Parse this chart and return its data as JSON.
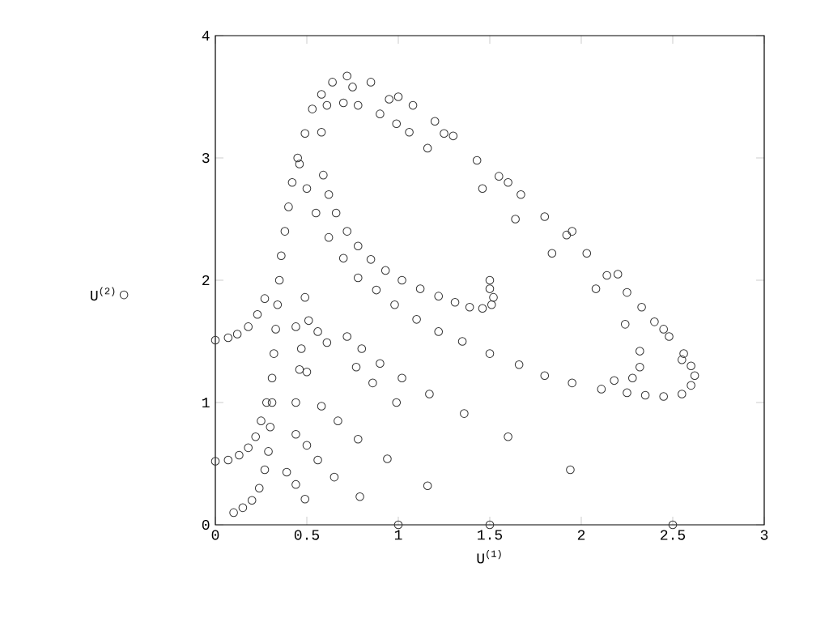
{
  "chart_data": {
    "type": "scatter",
    "xlabel": "U$^{(1)}$",
    "x": [
      0,
      0.07,
      0.12,
      0.18,
      0.23,
      0.27,
      0,
      0.07,
      0.13,
      0.18,
      0.22,
      0.25,
      0.28,
      0.1,
      0.15,
      0.2,
      0.24,
      0.27,
      0.29,
      0.3,
      0.31,
      0.31,
      0.32,
      0.33,
      0.34,
      0.35,
      0.36,
      0.38,
      0.4,
      0.42,
      0.45,
      0.49,
      0.53,
      0.58,
      0.64,
      0.72,
      0.85,
      1.0,
      1.08,
      1.2,
      1.3,
      1.43,
      1.55,
      1.67,
      1.8,
      1.92,
      2.03,
      2.14,
      2.25,
      2.33,
      2.4,
      2.48,
      2.56,
      2.6,
      2.62,
      2.6,
      2.55,
      2.45,
      2.35,
      2.25,
      2.11,
      1.95,
      1.8,
      1.66,
      1.5,
      1.35,
      1.22,
      1.1,
      0.98,
      0.88,
      0.78,
      0.7,
      0.62,
      0.55,
      0.5,
      0.46,
      0.75,
      0.95,
      1.25,
      1.6,
      1.95,
      2.2,
      2.45,
      2.55,
      0.58,
      0.61,
      0.7,
      0.78,
      0.9,
      0.99,
      1.16,
      0.59,
      0.62,
      0.66,
      0.72,
      0.78,
      0.85,
      0.93,
      1.02,
      1.12,
      1.22,
      1.31,
      1.39,
      1.46,
      1.51,
      1.52,
      1.5,
      1.5,
      1.84,
      2.08,
      2.24,
      2.32,
      2.32,
      2.28,
      2.18,
      1.46,
      1.64,
      1.06,
      0.49,
      0.51,
      0.56,
      0.61,
      0.72,
      0.8,
      0.9,
      1.02,
      1.17,
      1.36,
      1.6,
      1.94,
      0.44,
      0.47,
      0.5,
      0.58,
      0.67,
      0.78,
      0.94,
      1.16,
      0.99,
      0.86,
      0.77,
      0.46,
      0.44,
      0.44,
      0.5,
      0.56,
      0.65,
      0.79,
      0.44,
      0.49,
      0.39,
      1.0,
      1.5,
      2.5
    ],
    "series": [
      {
        "name": "U$^{(2)}$",
        "color": "#333333",
        "values": [
          1.51,
          1.53,
          1.56,
          1.62,
          1.72,
          1.85,
          0.52,
          0.53,
          0.57,
          0.63,
          0.72,
          0.85,
          1.0,
          0.1,
          0.14,
          0.2,
          0.3,
          0.45,
          0.6,
          0.8,
          1.0,
          1.2,
          1.4,
          1.6,
          1.8,
          2.0,
          2.2,
          2.4,
          2.6,
          2.8,
          3.0,
          3.2,
          3.4,
          3.52,
          3.62,
          3.67,
          3.62,
          3.5,
          3.43,
          3.3,
          3.18,
          2.98,
          2.85,
          2.7,
          2.52,
          2.37,
          2.22,
          2.04,
          1.9,
          1.78,
          1.66,
          1.54,
          1.4,
          1.3,
          1.22,
          1.14,
          1.07,
          1.05,
          1.06,
          1.08,
          1.11,
          1.16,
          1.22,
          1.31,
          1.4,
          1.5,
          1.58,
          1.68,
          1.8,
          1.92,
          2.02,
          2.18,
          2.35,
          2.55,
          2.75,
          2.95,
          3.58,
          3.48,
          3.2,
          2.8,
          2.4,
          2.05,
          1.6,
          1.35,
          3.21,
          3.43,
          3.45,
          3.43,
          3.36,
          3.28,
          3.08,
          2.86,
          2.7,
          2.55,
          2.4,
          2.28,
          2.17,
          2.08,
          2.0,
          1.93,
          1.87,
          1.82,
          1.78,
          1.77,
          1.8,
          1.86,
          1.93,
          2.0,
          2.22,
          1.93,
          1.64,
          1.42,
          1.29,
          1.2,
          1.18,
          2.75,
          2.5,
          3.21,
          1.86,
          1.67,
          1.58,
          1.49,
          1.54,
          1.44,
          1.32,
          1.2,
          1.07,
          0.91,
          0.72,
          0.45,
          1.62,
          1.44,
          1.25,
          0.97,
          0.85,
          0.7,
          0.54,
          0.32,
          1.0,
          1.16,
          1.29,
          1.27,
          1.0,
          0.74,
          0.65,
          0.53,
          0.39,
          0.23,
          0.33,
          0.21,
          0.43,
          0,
          0,
          0
        ]
      }
    ],
    "xlim": [
      0,
      3
    ],
    "ylim": [
      0,
      4
    ],
    "xticks": [
      0,
      0.5,
      1,
      1.5,
      2,
      2.5,
      3
    ],
    "yticks": [
      0,
      1,
      2,
      3,
      4
    ],
    "marker": "circle",
    "legend": "left"
  }
}
